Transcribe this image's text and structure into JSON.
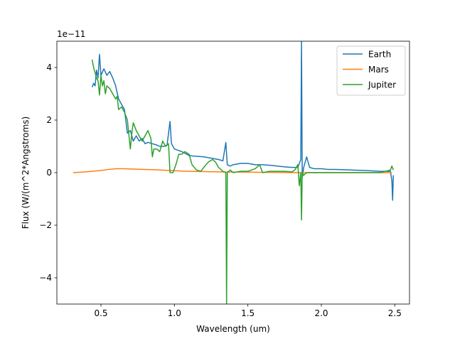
{
  "chart_data": {
    "type": "line",
    "xlabel": "Wavelength (um)",
    "ylabel": "Flux (W/(m^2*Angstroms)",
    "y_offset_label": "1e−11",
    "xlim": [
      0.2,
      2.6
    ],
    "ylim": [
      -5,
      5
    ],
    "x_ticks": [
      0.5,
      1.0,
      1.5,
      2.0,
      2.5
    ],
    "x_tick_labels": [
      "0.5",
      "1.0",
      "1.5",
      "2.0",
      "2.5"
    ],
    "y_ticks": [
      -4,
      -2,
      0,
      2,
      4
    ],
    "y_tick_labels": [
      "−4",
      "−2",
      "0",
      "2",
      "4"
    ],
    "grid": false,
    "legend_position": "top-right",
    "series": [
      {
        "name": "Earth",
        "color": "#1f77b4",
        "points": [
          [
            0.44,
            3.25
          ],
          [
            0.45,
            3.4
          ],
          [
            0.46,
            3.3
          ],
          [
            0.47,
            3.9
          ],
          [
            0.48,
            3.6
          ],
          [
            0.49,
            4.5
          ],
          [
            0.5,
            3.7
          ],
          [
            0.52,
            3.95
          ],
          [
            0.54,
            3.7
          ],
          [
            0.56,
            3.85
          ],
          [
            0.58,
            3.6
          ],
          [
            0.6,
            3.3
          ],
          [
            0.62,
            2.8
          ],
          [
            0.64,
            2.6
          ],
          [
            0.66,
            2.4
          ],
          [
            0.68,
            1.5
          ],
          [
            0.7,
            1.6
          ],
          [
            0.72,
            1.2
          ],
          [
            0.74,
            1.4
          ],
          [
            0.76,
            1.2
          ],
          [
            0.78,
            1.3
          ],
          [
            0.8,
            1.1
          ],
          [
            0.82,
            1.15
          ],
          [
            0.85,
            1.1
          ],
          [
            0.88,
            1.05
          ],
          [
            0.9,
            1.0
          ],
          [
            0.93,
            1.0
          ],
          [
            0.95,
            1.05
          ],
          [
            0.97,
            1.95
          ],
          [
            0.98,
            1.1
          ],
          [
            1.0,
            0.9
          ],
          [
            1.05,
            0.8
          ],
          [
            1.1,
            0.65
          ],
          [
            1.15,
            0.62
          ],
          [
            1.2,
            0.6
          ],
          [
            1.25,
            0.55
          ],
          [
            1.3,
            0.5
          ],
          [
            1.33,
            0.45
          ],
          [
            1.35,
            1.15
          ],
          [
            1.36,
            0.3
          ],
          [
            1.38,
            0.25
          ],
          [
            1.4,
            0.3
          ],
          [
            1.45,
            0.35
          ],
          [
            1.5,
            0.35
          ],
          [
            1.55,
            0.3
          ],
          [
            1.6,
            0.3
          ],
          [
            1.65,
            0.28
          ],
          [
            1.7,
            0.25
          ],
          [
            1.75,
            0.22
          ],
          [
            1.8,
            0.2
          ],
          [
            1.84,
            0.2
          ],
          [
            1.86,
            0.5
          ],
          [
            1.865,
            5.0
          ],
          [
            1.87,
            -0.2
          ],
          [
            1.88,
            0.2
          ],
          [
            1.9,
            0.6
          ],
          [
            1.92,
            0.2
          ],
          [
            1.95,
            0.15
          ],
          [
            2.0,
            0.15
          ],
          [
            2.05,
            0.12
          ],
          [
            2.1,
            0.12
          ],
          [
            2.2,
            0.1
          ],
          [
            2.3,
            0.08
          ],
          [
            2.4,
            0.05
          ],
          [
            2.47,
            0.05
          ],
          [
            2.48,
            -0.3
          ],
          [
            2.485,
            -1.05
          ],
          [
            2.49,
            -0.1
          ]
        ]
      },
      {
        "name": "Mars",
        "color": "#ff7f0e",
        "points": [
          [
            0.31,
            0.0
          ],
          [
            0.4,
            0.03
          ],
          [
            0.5,
            0.08
          ],
          [
            0.55,
            0.12
          ],
          [
            0.6,
            0.15
          ],
          [
            0.65,
            0.15
          ],
          [
            0.7,
            0.14
          ],
          [
            0.8,
            0.12
          ],
          [
            0.9,
            0.1
          ],
          [
            1.0,
            0.07
          ],
          [
            1.1,
            0.05
          ],
          [
            1.2,
            0.04
          ],
          [
            1.3,
            0.03
          ],
          [
            1.4,
            0.02
          ],
          [
            1.5,
            0.02
          ],
          [
            1.6,
            0.01
          ],
          [
            1.7,
            0.01
          ],
          [
            1.8,
            0.0
          ],
          [
            1.9,
            0.0
          ],
          [
            2.0,
            0.0
          ],
          [
            2.1,
            0.0
          ],
          [
            2.2,
            0.0
          ],
          [
            2.3,
            0.0
          ],
          [
            2.4,
            0.0
          ],
          [
            2.48,
            0.0
          ]
        ]
      },
      {
        "name": "Jupiter",
        "color": "#2ca02c",
        "points": [
          [
            0.44,
            4.3
          ],
          [
            0.45,
            4.0
          ],
          [
            0.46,
            3.8
          ],
          [
            0.47,
            3.6
          ],
          [
            0.48,
            3.5
          ],
          [
            0.49,
            2.95
          ],
          [
            0.5,
            3.7
          ],
          [
            0.51,
            3.3
          ],
          [
            0.52,
            3.5
          ],
          [
            0.53,
            3.0
          ],
          [
            0.54,
            3.3
          ],
          [
            0.56,
            3.2
          ],
          [
            0.58,
            3.0
          ],
          [
            0.6,
            2.8
          ],
          [
            0.61,
            2.9
          ],
          [
            0.62,
            2.4
          ],
          [
            0.64,
            2.5
          ],
          [
            0.66,
            2.3
          ],
          [
            0.68,
            2.0
          ],
          [
            0.7,
            0.9
          ],
          [
            0.71,
            1.5
          ],
          [
            0.72,
            1.9
          ],
          [
            0.74,
            1.6
          ],
          [
            0.76,
            1.4
          ],
          [
            0.78,
            1.2
          ],
          [
            0.8,
            1.4
          ],
          [
            0.82,
            1.6
          ],
          [
            0.84,
            1.3
          ],
          [
            0.85,
            0.6
          ],
          [
            0.86,
            0.9
          ],
          [
            0.88,
            0.9
          ],
          [
            0.9,
            0.8
          ],
          [
            0.92,
            1.2
          ],
          [
            0.94,
            1.0
          ],
          [
            0.96,
            1.1
          ],
          [
            0.97,
            0.0
          ],
          [
            0.99,
            0.0
          ],
          [
            1.01,
            0.3
          ],
          [
            1.03,
            0.7
          ],
          [
            1.05,
            0.7
          ],
          [
            1.07,
            0.8
          ],
          [
            1.1,
            0.7
          ],
          [
            1.12,
            0.3
          ],
          [
            1.15,
            0.1
          ],
          [
            1.18,
            0.05
          ],
          [
            1.2,
            0.2
          ],
          [
            1.23,
            0.4
          ],
          [
            1.26,
            0.5
          ],
          [
            1.28,
            0.4
          ],
          [
            1.3,
            0.2
          ],
          [
            1.33,
            0.05
          ],
          [
            1.35,
            0.0
          ],
          [
            1.355,
            -5.0
          ],
          [
            1.36,
            0.0
          ],
          [
            1.38,
            0.1
          ],
          [
            1.4,
            0.0
          ],
          [
            1.45,
            0.05
          ],
          [
            1.5,
            0.05
          ],
          [
            1.55,
            0.15
          ],
          [
            1.58,
            0.3
          ],
          [
            1.6,
            0.0
          ],
          [
            1.65,
            0.05
          ],
          [
            1.7,
            0.05
          ],
          [
            1.75,
            0.05
          ],
          [
            1.8,
            0.03
          ],
          [
            1.82,
            0.1
          ],
          [
            1.84,
            0.3
          ],
          [
            1.85,
            -0.5
          ],
          [
            1.86,
            0.0
          ],
          [
            1.865,
            -1.8
          ],
          [
            1.87,
            0.0
          ],
          [
            1.88,
            -0.1
          ],
          [
            1.9,
            0.0
          ],
          [
            2.0,
            0.0
          ],
          [
            2.1,
            0.0
          ],
          [
            2.2,
            0.0
          ],
          [
            2.3,
            0.0
          ],
          [
            2.4,
            0.0
          ],
          [
            2.47,
            0.1
          ],
          [
            2.48,
            0.25
          ],
          [
            2.49,
            0.1
          ]
        ]
      }
    ]
  }
}
